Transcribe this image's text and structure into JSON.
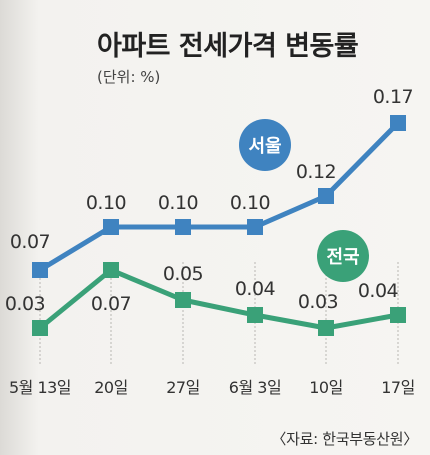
{
  "header": {
    "title": "아파트 전세가격 변동률",
    "unit": "(단위: %)"
  },
  "footer": {
    "source": "〈자료: 한국부동산원〉"
  },
  "chart_data": {
    "type": "line",
    "categories": [
      "5월 13일",
      "20일",
      "27일",
      "6월 3일",
      "10일",
      "17일"
    ],
    "series": [
      {
        "name": "서울",
        "values": [
          0.07,
          0.1,
          0.1,
          0.1,
          0.12,
          0.17
        ],
        "labels": [
          "0.07",
          "0.10",
          "0.10",
          "0.10",
          "0.12",
          "0.17"
        ],
        "color": "#3f83c0",
        "badge_color": "#3f83c0"
      },
      {
        "name": "전국",
        "values": [
          0.03,
          0.07,
          0.05,
          0.04,
          0.03,
          0.04
        ],
        "labels": [
          "0.03",
          "0.07",
          "0.05",
          "0.04",
          "0.03",
          "0.04"
        ],
        "color": "#3aa178",
        "badge_color": "#3aa178"
      }
    ]
  }
}
